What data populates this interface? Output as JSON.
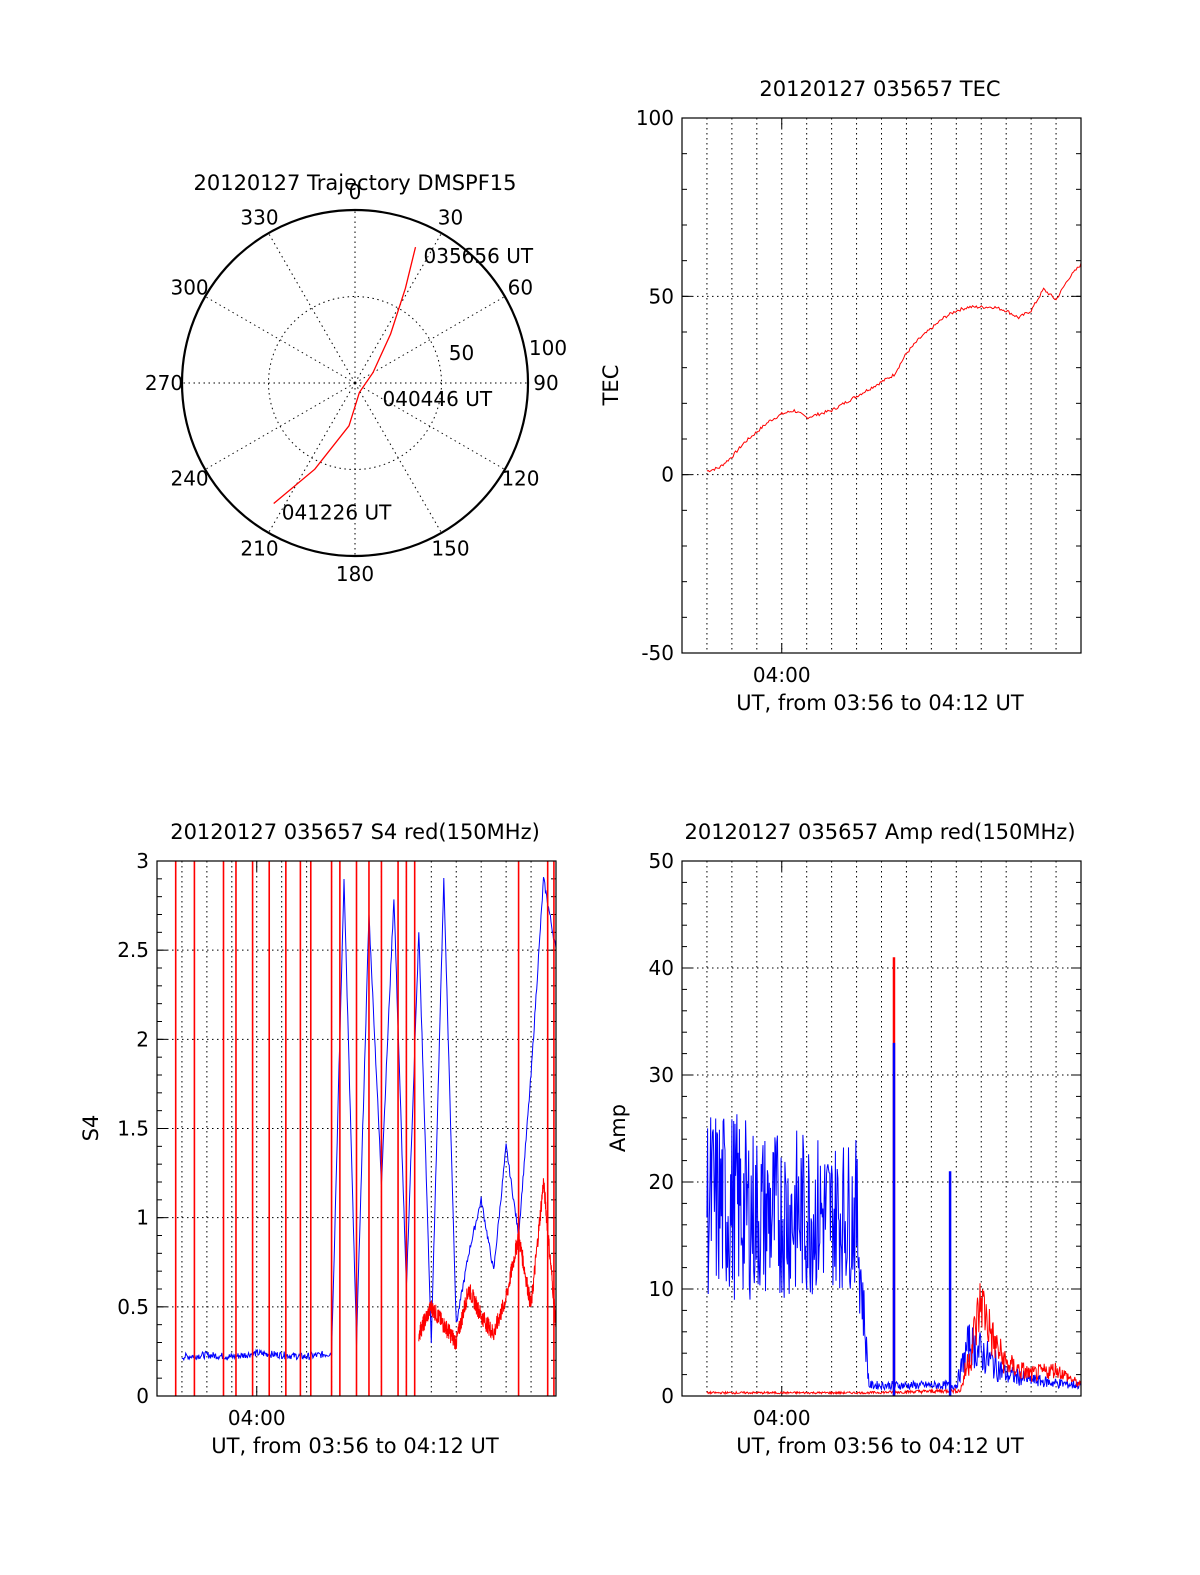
{
  "colors": {
    "red": "#ff0000",
    "blue": "#0000ff",
    "axis": "#000000"
  },
  "chart_data": [
    {
      "id": "trajectory",
      "type": "polar",
      "title": "20120127 Trajectory DMSPF15",
      "angle_labels": [
        "0",
        "30",
        "60",
        "90",
        "120",
        "150",
        "180",
        "210",
        "240",
        "270",
        "300",
        "330"
      ],
      "radius_labels": [
        "50",
        "100"
      ],
      "rmax": 100,
      "grid": true,
      "track": {
        "color": "#ff0000",
        "points": [
          {
            "az": 24,
            "r": 86
          },
          {
            "az": 28,
            "r": 62
          },
          {
            "az": 36,
            "r": 35
          },
          {
            "az": 60,
            "r": 12
          },
          {
            "az": 155,
            "r": 6
          },
          {
            "az": 188,
            "r": 25
          },
          {
            "az": 205,
            "r": 55
          },
          {
            "az": 214,
            "r": 84
          }
        ]
      },
      "annotations": [
        {
          "text": "035656 UT",
          "az": 24,
          "r": 86
        },
        {
          "text": "040446 UT",
          "az": 110,
          "r": 12
        },
        {
          "text": "041226 UT",
          "az": 214,
          "r": 84
        }
      ]
    },
    {
      "id": "tec",
      "type": "line",
      "title": "20120127 035657 TEC",
      "ylabel": "TEC",
      "xlabel": "UT, from 03:56 to 04:12 UT",
      "xlim": [
        "03:56:00",
        "04:12:00"
      ],
      "ylim": [
        -50,
        100
      ],
      "yticks": [
        -50,
        0,
        50,
        100
      ],
      "xtick_labels": [
        {
          "time": "04:00:00",
          "label": "04:00"
        }
      ],
      "grid": true,
      "series": [
        {
          "color": "#ff0000",
          "x": [
            "03:57:00",
            "03:57:30",
            "03:58:00",
            "03:58:30",
            "03:59:00",
            "03:59:30",
            "04:00:00",
            "04:00:30",
            "04:01:00",
            "04:01:30",
            "04:02:00",
            "04:02:30",
            "04:03:00",
            "04:03:30",
            "04:04:00",
            "04:04:30",
            "04:05:00",
            "04:05:30",
            "04:06:00",
            "04:06:30",
            "04:07:00",
            "04:07:30",
            "04:08:00",
            "04:08:30",
            "04:09:00",
            "04:09:30",
            "04:10:00",
            "04:10:30",
            "04:11:00",
            "04:11:30",
            "04:12:00"
          ],
          "y": [
            1,
            2,
            5,
            9,
            12,
            15,
            17,
            18,
            16,
            17,
            18,
            20,
            22,
            24,
            26,
            28,
            34,
            38,
            41,
            44,
            46,
            47,
            47,
            47,
            46,
            44,
            46,
            52,
            49,
            55,
            59
          ]
        }
      ]
    },
    {
      "id": "s4",
      "type": "line",
      "title": "20120127 035657 S4 red(150MHz)",
      "ylabel": "S4",
      "xlabel": "UT, from 03:56 to 04:12 UT",
      "xlim": [
        "03:56:00",
        "04:12:00"
      ],
      "ylim": [
        0,
        3
      ],
      "yticks": [
        0,
        0.5,
        1,
        1.5,
        2,
        2.5,
        3
      ],
      "ytick_labels": [
        "0",
        "0.5",
        "1",
        "1.5",
        "2",
        "2.5",
        "3"
      ],
      "xtick_labels": [
        {
          "time": "04:00:00",
          "label": "04:00"
        }
      ],
      "grid": true,
      "series": [
        {
          "color": "#0000ff",
          "x": [
            "03:57:00",
            "03:58:00",
            "03:59:00",
            "04:00:00",
            "04:01:00",
            "04:02:00",
            "04:03:00",
            "04:03:30",
            "04:04:00",
            "04:04:30",
            "04:05:00",
            "04:05:30",
            "04:06:00",
            "04:06:30",
            "04:07:00",
            "04:07:30",
            "04:08:00",
            "04:08:30",
            "04:09:00",
            "04:09:30",
            "04:10:00",
            "04:10:30",
            "04:11:00",
            "04:11:30",
            "04:12:00"
          ],
          "y": [
            0.22,
            0.23,
            0.22,
            0.24,
            0.23,
            0.22,
            0.24,
            2.9,
            0.3,
            2.7,
            1.2,
            2.8,
            0.6,
            2.6,
            0.3,
            2.9,
            0.4,
            0.8,
            1.1,
            0.7,
            1.4,
            0.9,
            1.8,
            2.9,
            2.5
          ],
          "noise": 0.02
        },
        {
          "color": "#ff0000",
          "x": [
            "04:06:30",
            "04:07:00",
            "04:07:30",
            "04:08:00",
            "04:08:30",
            "04:09:00",
            "04:09:30",
            "04:10:00",
            "04:10:30",
            "04:11:00",
            "04:11:30",
            "04:12:00"
          ],
          "y": [
            0.35,
            0.5,
            0.4,
            0.3,
            0.6,
            0.45,
            0.35,
            0.55,
            0.9,
            0.5,
            1.2,
            0.4
          ],
          "noise": 0.05
        }
      ],
      "spikes": {
        "color": "#ff0000",
        "x": [
          "03:56:45",
          "03:57:30",
          "03:58:40",
          "03:59:10",
          "03:59:50",
          "04:00:30",
          "04:01:10",
          "04:01:45",
          "04:02:10",
          "04:03:00",
          "04:03:20",
          "04:04:00",
          "04:04:30",
          "04:05:00",
          "04:05:40",
          "04:06:00",
          "04:06:20",
          "04:10:30",
          "04:11:40",
          "04:11:55"
        ]
      }
    },
    {
      "id": "amp",
      "type": "line",
      "title": "20120127 035657 Amp red(150MHz)",
      "ylabel": "Amp",
      "xlabel": "UT, from 03:56 to 04:12 UT",
      "xlim": [
        "03:56:00",
        "04:12:00"
      ],
      "ylim": [
        0,
        50
      ],
      "yticks": [
        0,
        10,
        20,
        30,
        40,
        50
      ],
      "xtick_labels": [
        {
          "time": "04:00:00",
          "label": "04:00"
        }
      ],
      "grid": true,
      "series": [
        {
          "color": "#0000ff",
          "x": [
            "03:57:00",
            "03:58:00",
            "03:59:00",
            "04:00:00",
            "04:01:00",
            "04:02:00",
            "04:03:00",
            "04:03:30",
            "04:04:00",
            "04:04:30",
            "04:05:00",
            "04:06:00",
            "04:07:00",
            "04:07:30",
            "04:08:00",
            "04:09:00",
            "04:10:00",
            "04:11:00",
            "04:12:00"
          ],
          "y": [
            18,
            18,
            17,
            17,
            17,
            17,
            17,
            1,
            1,
            1,
            1,
            1,
            1,
            5,
            4,
            2,
            1.5,
            1.2,
            1
          ],
          "noise": [
            9,
            9,
            8,
            8,
            8,
            7,
            7,
            0.4,
            0.4,
            0.4,
            0.4,
            0.4,
            0.4,
            2,
            2,
            1,
            0.6,
            0.5,
            0.4
          ]
        },
        {
          "color": "#ff0000",
          "x": [
            "03:57:00",
            "04:03:20",
            "04:07:10",
            "04:07:40",
            "04:08:00",
            "04:08:30",
            "04:09:00",
            "04:10:00",
            "04:11:00",
            "04:12:00"
          ],
          "y": [
            0.3,
            0.3,
            0.5,
            5,
            9,
            5,
            3,
            2,
            2.5,
            1
          ],
          "noise": [
            0.1,
            0.1,
            0.2,
            2.5,
            3,
            2,
            1.2,
            0.8,
            0.8,
            0.3
          ]
        }
      ],
      "spikes": {
        "items": [
          {
            "x": "04:04:30",
            "y": 41,
            "color": "#ff0000"
          },
          {
            "x": "04:04:30",
            "y": 33,
            "color": "#0000ff"
          },
          {
            "x": "04:06:45",
            "y": 21,
            "color": "#0000ff"
          }
        ]
      }
    }
  ]
}
